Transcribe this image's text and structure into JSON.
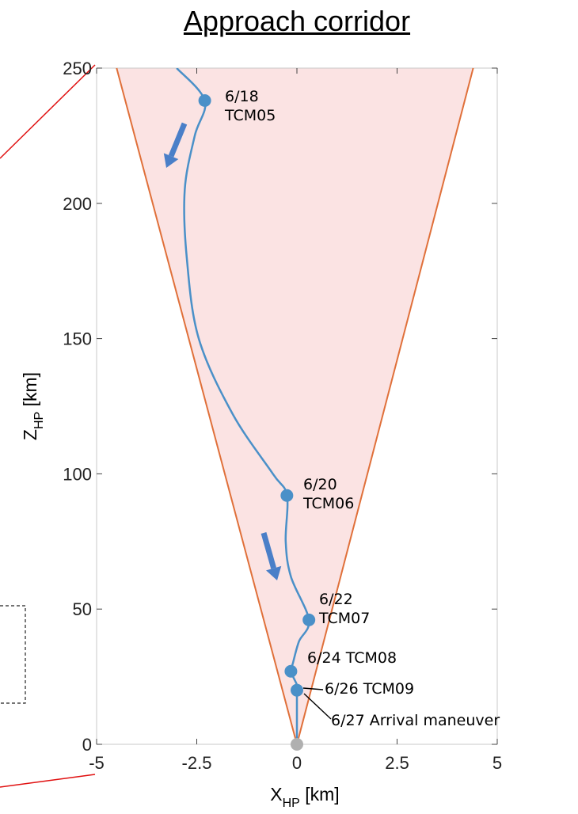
{
  "chart_data": {
    "type": "line",
    "title": "Approach corridor",
    "xlabel": {
      "main": "X",
      "sub": "HP",
      "unit": " [km]"
    },
    "ylabel": {
      "main": "Z",
      "sub": "HP",
      "unit": " [km]"
    },
    "xlim": [
      -5,
      5
    ],
    "ylim": [
      0,
      250
    ],
    "xticks": [
      -5,
      -2.5,
      0,
      2.5,
      5
    ],
    "xtick_labels": [
      "-5",
      "-2.5",
      "0",
      "2.5",
      "5"
    ],
    "yticks": [
      0,
      50,
      100,
      150,
      200,
      250
    ],
    "ytick_labels": [
      "0",
      "50",
      "100",
      "150",
      "200",
      "250"
    ],
    "grid": false,
    "corridor": {
      "boundary_points": [
        [
          -4.5,
          250
        ],
        [
          0,
          0
        ],
        [
          4.4,
          250
        ]
      ],
      "fill_color": "#fbe3e3",
      "line_color": "#e0703a"
    },
    "trajectory": {
      "color": "#4a90c8",
      "points": [
        [
          -3.0,
          250
        ],
        [
          -2.3,
          238
        ],
        [
          -2.55,
          225
        ],
        [
          -2.8,
          205
        ],
        [
          -2.75,
          180
        ],
        [
          -2.45,
          150
        ],
        [
          -1.6,
          122
        ],
        [
          -0.6,
          100
        ],
        [
          -0.25,
          92
        ],
        [
          -0.28,
          75
        ],
        [
          -0.15,
          62
        ],
        [
          0.3,
          46
        ],
        [
          0.05,
          38
        ],
        [
          -0.1,
          30
        ],
        [
          -0.15,
          27
        ],
        [
          0.0,
          22
        ],
        [
          0.0,
          20
        ],
        [
          0.0,
          0
        ]
      ]
    },
    "maneuvers": [
      {
        "x": -2.3,
        "y": 238,
        "label_lines": [
          "6/18",
          "TCM05"
        ]
      },
      {
        "x": -0.25,
        "y": 92,
        "label_lines": [
          "6/20",
          "TCM06"
        ]
      },
      {
        "x": 0.3,
        "y": 46,
        "label_lines": [
          "6/22",
          "TCM07"
        ]
      },
      {
        "x": -0.15,
        "y": 27,
        "label_lines": [
          "6/24 TCM08"
        ]
      },
      {
        "x": 0.0,
        "y": 20,
        "label_lines": [
          "6/26 TCM09"
        ]
      },
      {
        "x": 0.0,
        "y": 20,
        "label_lines": [
          "6/27 Arrival maneuver"
        ]
      }
    ],
    "target_point": {
      "x": 0,
      "y": 0,
      "color": "#b0b0b0"
    },
    "arrow_color": "#4a7fc8",
    "connector_color": "#e01010"
  }
}
